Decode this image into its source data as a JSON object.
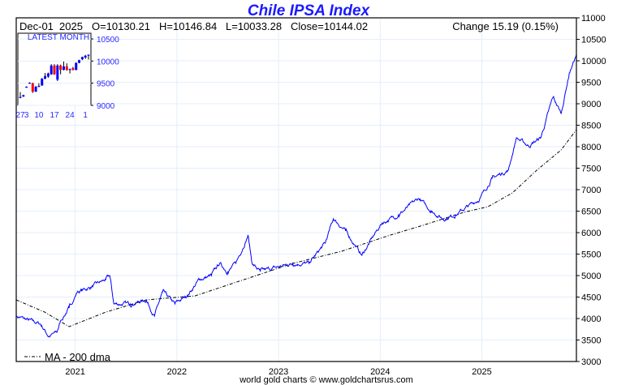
{
  "chart_data": {
    "type": "line",
    "title": "Chile IPSA Index",
    "header": {
      "date": "Dec-01",
      "year": "2025",
      "open": "O=10130.21",
      "high": "H=10146.84",
      "low": "L=10033.28",
      "close": "Close=10144.02",
      "change": "Change 15.19 (0.15%)"
    },
    "ylim": [
      3000,
      11000
    ],
    "xlim": [
      2020.42,
      2025.93
    ],
    "y_ticks": [
      "3000",
      "3500",
      "4000",
      "4500",
      "5000",
      "5500",
      "6000",
      "6500",
      "7000",
      "7500",
      "8000",
      "8500",
      "9000",
      "9500",
      "10000",
      "10500",
      "11000"
    ],
    "x_ticks": [
      {
        "label": "2021",
        "x": 2021
      },
      {
        "label": "2022",
        "x": 2022
      },
      {
        "label": "2023",
        "x": 2023
      },
      {
        "label": "2024",
        "x": 2024
      },
      {
        "label": "2025",
        "x": 2025
      }
    ],
    "grid": true,
    "legend": {
      "label": "MA - 200 dma",
      "placement": "bottom-left"
    },
    "series": [
      {
        "name": "Chile IPSA Index",
        "color": "#0000ff",
        "x": [
          2020.42,
          2020.54,
          2020.66,
          2020.74,
          2020.82,
          2020.86,
          2020.94,
          2021.02,
          2021.14,
          2021.3,
          2021.34,
          2021.38,
          2021.54,
          2021.7,
          2021.78,
          2021.86,
          2021.98,
          2022.1,
          2022.22,
          2022.34,
          2022.42,
          2022.5,
          2022.58,
          2022.7,
          2022.74,
          2022.82,
          2022.98,
          2023.14,
          2023.3,
          2023.46,
          2023.54,
          2023.66,
          2023.82,
          2023.94,
          2024.02,
          2024.18,
          2024.38,
          2024.5,
          2024.62,
          2024.74,
          2024.86,
          2024.98,
          2025.1,
          2025.26,
          2025.34,
          2025.46,
          2025.58,
          2025.7,
          2025.78,
          2025.86,
          2025.93
        ],
        "y": [
          4057,
          3960,
          3870,
          3585,
          3680,
          3960,
          4245,
          4620,
          4717,
          4905,
          5000,
          4340,
          4340,
          4434,
          4057,
          4620,
          4340,
          4528,
          4905,
          5000,
          5283,
          5094,
          5283,
          5943,
          5283,
          5094,
          5189,
          5283,
          5283,
          5755,
          6321,
          6038,
          5472,
          5943,
          6226,
          6415,
          6792,
          6509,
          6321,
          6415,
          6604,
          6792,
          7264,
          7453,
          8208,
          8019,
          8208,
          9151,
          8774,
          9717,
          10144
        ]
      },
      {
        "name": "MA - 200 dma",
        "color": "#000000",
        "x": [
          2020.42,
          2020.7,
          2020.94,
          2021.3,
          2021.7,
          2022.18,
          2022.66,
          2023.14,
          2023.62,
          2024.1,
          2024.42,
          2024.82,
          2025.06,
          2025.3,
          2025.54,
          2025.78,
          2025.93
        ],
        "y": [
          4434,
          4150,
          3811,
          4150,
          4434,
          4528,
          4905,
          5283,
          5566,
          5943,
          6170,
          6472,
          6604,
          6925,
          7453,
          7925,
          8396
        ]
      }
    ],
    "inset": {
      "title": "LATEST MONTH",
      "ylim": [
        9000,
        10500
      ],
      "y_ticks": [
        "9000",
        "9500",
        "10000",
        "10500"
      ],
      "x_ticks": [
        {
          "label": "27",
          "i": 0
        },
        {
          "label": "3",
          "i": 2
        },
        {
          "label": "10",
          "i": 6
        },
        {
          "label": "17",
          "i": 11
        },
        {
          "label": "24",
          "i": 16
        },
        {
          "label": "1",
          "i": 21
        }
      ],
      "up_color": "#0000ff",
      "down_color": "#ff0000",
      "candles": [
        {
          "o": 9170,
          "c": 9190,
          "h": 9300,
          "l": 9160
        },
        {
          "o": 9200,
          "c": 9230,
          "h": 9240,
          "l": 9190
        },
        {
          "o": 9410,
          "c": 9420,
          "h": 9430,
          "l": 9400
        },
        {
          "o": 9500,
          "c": 9510,
          "h": 9520,
          "l": 9490
        },
        {
          "o": 9500,
          "c": 9310,
          "h": 9510,
          "l": 9280
        },
        {
          "o": 9310,
          "c": 9420,
          "h": 9440,
          "l": 9300
        },
        {
          "o": 9420,
          "c": 9440,
          "h": 9500,
          "l": 9410
        },
        {
          "o": 9450,
          "c": 9600,
          "h": 9620,
          "l": 9440
        },
        {
          "o": 9600,
          "c": 9660,
          "h": 9730,
          "l": 9590
        },
        {
          "o": 9650,
          "c": 9720,
          "h": 9740,
          "l": 9620
        },
        {
          "o": 9700,
          "c": 9900,
          "h": 9930,
          "l": 9690
        },
        {
          "o": 9900,
          "c": 9700,
          "h": 9930,
          "l": 9690
        },
        {
          "o": 9580,
          "c": 9900,
          "h": 9930,
          "l": 9550
        },
        {
          "o": 9900,
          "c": 9800,
          "h": 9920,
          "l": 9700
        },
        {
          "o": 9800,
          "c": 9880,
          "h": 9990,
          "l": 9790
        },
        {
          "o": 9880,
          "c": 9800,
          "h": 9950,
          "l": 9780
        },
        {
          "o": 9800,
          "c": 9820,
          "h": 9830,
          "l": 9720
        },
        {
          "o": 9840,
          "c": 9800,
          "h": 9870,
          "l": 9790
        },
        {
          "o": 9800,
          "c": 9960,
          "h": 9970,
          "l": 9790
        },
        {
          "o": 9960,
          "c": 10020,
          "h": 10030,
          "l": 9950
        },
        {
          "o": 10040,
          "c": 10090,
          "h": 10100,
          "l": 10020
        },
        {
          "o": 10080,
          "c": 10120,
          "h": 10140,
          "l": 10050
        },
        {
          "o": 10130,
          "c": 10144,
          "h": 10147,
          "l": 10033
        }
      ]
    }
  },
  "footer": "world gold charts © www.goldchartsrus.com"
}
